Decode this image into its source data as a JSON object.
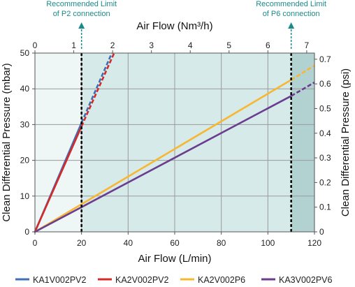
{
  "chart_data": {
    "type": "line",
    "xlabel": "Air Flow (L/min)",
    "x2label": "Air Flow (Nm³/h)",
    "ylabel": "Clean Differential Pressure (mbar)",
    "y2label": "Clean Differential Pressure (psi)",
    "xlim": [
      0,
      120
    ],
    "ylim": [
      0,
      50
    ],
    "x2lim": [
      0,
      7.2
    ],
    "y2lim": [
      0,
      0.725
    ],
    "xticks": [
      "0",
      "20",
      "40",
      "60",
      "80",
      "100",
      "120"
    ],
    "yticks": [
      "0",
      "10",
      "20",
      "30",
      "40",
      "50"
    ],
    "x2ticks": [
      "0",
      "1",
      "2",
      "3",
      "4",
      "5",
      "6",
      "7"
    ],
    "y2ticks": [
      "0",
      "0.1",
      "0.2",
      "0.3",
      "0.4",
      "0.5",
      "0.6",
      "0.7"
    ],
    "grid": true,
    "legend_position": "bottom",
    "regions": [
      {
        "from": 0,
        "to": 20,
        "color": "#eef6f6"
      },
      {
        "from": 20,
        "to": 110,
        "color": "#d6eaea"
      },
      {
        "from": 110,
        "to": 120,
        "color": "#b2d1d1"
      }
    ],
    "reference_lines": [
      {
        "x": 20,
        "label_lines": [
          "Recommended Limit",
          "of P2 connection"
        ]
      },
      {
        "x": 110,
        "label_lines": [
          "Recommended Limit",
          "of P6 connection"
        ]
      }
    ],
    "series": [
      {
        "name": "KA1V002PV2",
        "color": "#3d6fb5",
        "x": [
          0,
          20,
          33
        ],
        "y": [
          0,
          30.5,
          50
        ],
        "limit_x": 20
      },
      {
        "name": "KA2V002PV2",
        "color": "#d42a2a",
        "x": [
          0,
          20,
          34
        ],
        "y": [
          0,
          29.5,
          50
        ],
        "limit_x": 20
      },
      {
        "name": "KA2V002P6",
        "color": "#f7b733",
        "x": [
          0,
          110,
          120
        ],
        "y": [
          0,
          42.5,
          46.5
        ],
        "limit_x": 110
      },
      {
        "name": "KA3V002PV6",
        "color": "#6a3d8f",
        "x": [
          0,
          110,
          120
        ],
        "y": [
          0,
          38,
          41.8
        ],
        "limit_x": 110
      }
    ]
  }
}
